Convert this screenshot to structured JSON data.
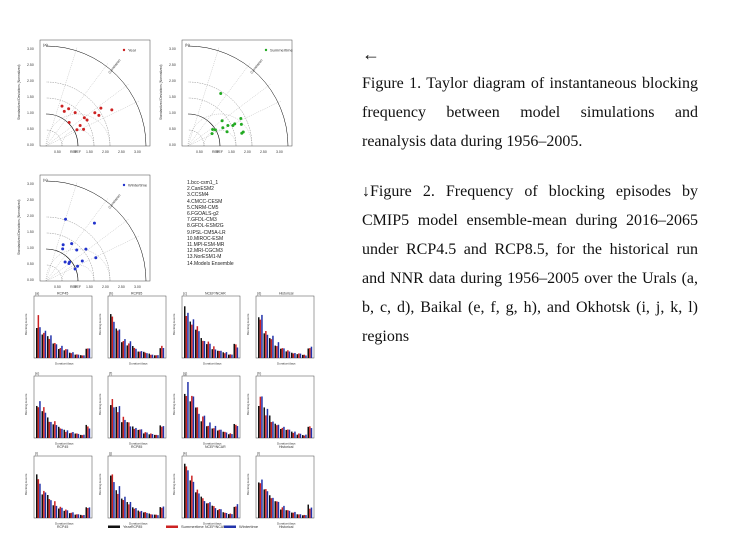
{
  "arrow_glyph": "←",
  "figure1_caption": "Figure 1. Taylor diagram of instantaneous blocking frequency between model simulations and reanalysis data during 1956–2005.",
  "figure2_caption": "↓Figure 2. Frequency of blocking episodes by CMIP5 model ensemble-mean during 2016–2065 under RCP4.5 and RCP8.5, for the historical run and NNR data during 1956–2005 over the Urals (a, b, c, d), Baikal (e, f, g, h), and Okhotsk (i, j, k, l) regions",
  "taylor": {
    "panels": [
      {
        "tag": "(a)",
        "legend": "Year",
        "color": "#cc2222"
      },
      {
        "tag": "(b)",
        "legend": "Summertime",
        "color": "#22aa22"
      },
      {
        "tag": "(c)",
        "legend": "Wintertime",
        "color": "#2233cc"
      }
    ],
    "ylabel": "Standardized Deviations (Normalized)",
    "corr_label": "Correlation",
    "ref_label": "REF",
    "x_ticks": [
      "0.50",
      "REF",
      "1.50",
      "2.00",
      "2.50",
      "3.00"
    ],
    "model_list": [
      "1.bcc-csm1_1",
      "2.CanESM2",
      "3.CCSM4",
      "4.CMCC-CESM",
      "5.CNRM-CM5",
      "6.FGOALS-g2",
      "7.GFDL-CM3",
      "8.GFDL-ESM2G",
      "9.IPSL-CM5A-LR",
      "10.MIROC-ESM",
      "11.MPI-ESM-MR",
      "12.MRI-CGCM3",
      "13.NorESM1-M",
      "14.Models Ensemble"
    ]
  },
  "bars": {
    "column_titles": [
      "RCP45",
      "RCP85",
      "NCEP/NCAR",
      "Historical"
    ],
    "row_tags": [
      [
        "(a)",
        "(b)",
        "(c)",
        "(d)"
      ],
      [
        "(e)",
        "(f)",
        "(g)",
        "(h)"
      ],
      [
        "(i)",
        "(j)",
        "(k)",
        "(l)"
      ]
    ],
    "ylabel": "Blocking Events",
    "xlabel": "Duration/days",
    "legend": [
      {
        "label": "Year",
        "color": "#111111"
      },
      {
        "label": "Summertime",
        "color": "#cc2222"
      },
      {
        "label": "Wintertime",
        "color": "#2233aa"
      }
    ]
  }
}
